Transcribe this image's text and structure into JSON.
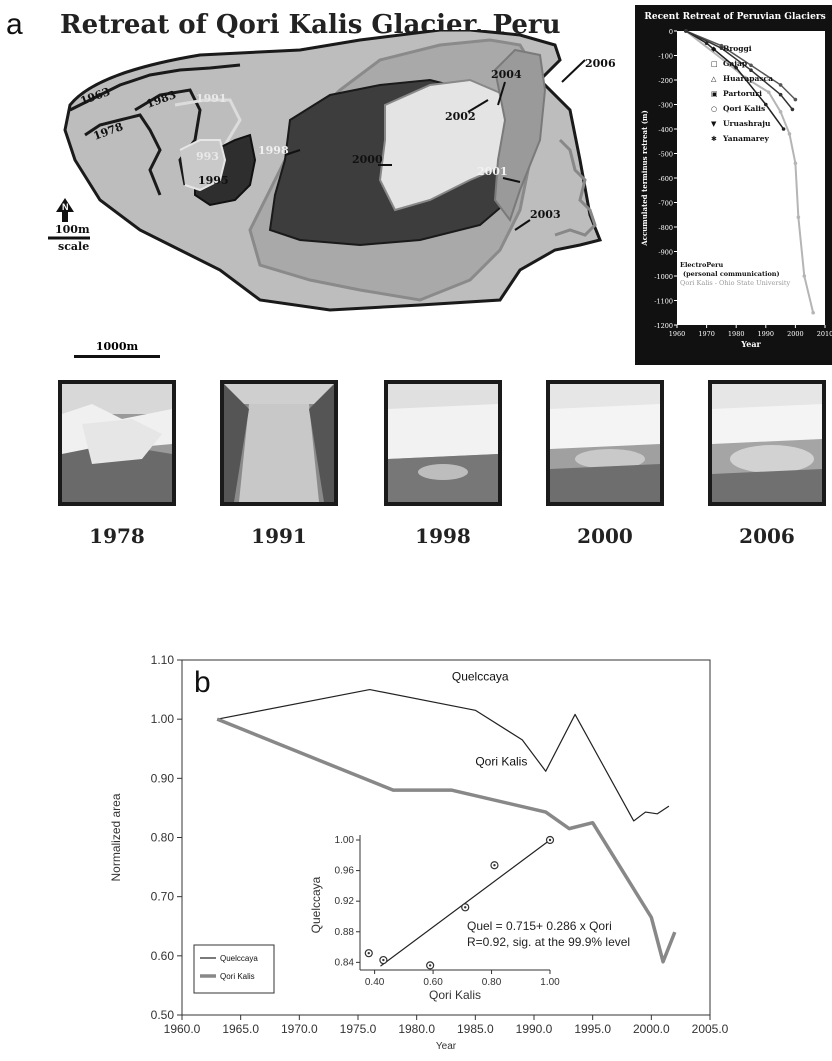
{
  "panel_a": {
    "letter": "a",
    "title": "Retreat of Qori Kalis Glacier, Peru",
    "map_labels": [
      "1963",
      "1978",
      "1983",
      "1991",
      "993",
      "1995",
      "1998",
      "2000",
      "2002",
      "2004",
      "2006",
      "2001",
      "2003"
    ],
    "north_label": "N",
    "scale_100_label": "100m",
    "scale_word": "scale",
    "scale_1000_label": "1000m",
    "photos": [
      {
        "year": "1978"
      },
      {
        "year": "1991"
      },
      {
        "year": "1998"
      },
      {
        "year": "2000"
      },
      {
        "year": "2006"
      }
    ]
  },
  "chart_data": [
    {
      "type": "line",
      "title": "Recent Retreat of Peruvian Glaciers",
      "xlabel": "Year",
      "ylabel": "Accumulated terminus retreat (m)",
      "xlim": [
        1960,
        2010
      ],
      "ylim": [
        -1200,
        0
      ],
      "x_ticks": [
        1960,
        1970,
        1980,
        1990,
        2000,
        2010
      ],
      "y_ticks": [
        0,
        -100,
        -200,
        -300,
        -400,
        -500,
        -600,
        -700,
        -800,
        -900,
        -1000,
        -1100,
        -1200
      ],
      "legend": [
        "Broggi",
        "Gajap",
        "Huarapasca",
        "Partoruri",
        "Qori Kalis",
        "Uruashraju",
        "Yanamarey"
      ],
      "legend_position": "top-center",
      "source_lines": [
        "ElectroPeru",
        "(personal communication)",
        "Qori Kalis - Ohio State University"
      ],
      "series": [
        {
          "name": "Qori Kalis",
          "color": "#b5b5b5",
          "x": [
            1963,
            1978,
            1983,
            1991,
            1995,
            1998,
            2000,
            2001,
            2003,
            2006
          ],
          "y": [
            0,
            -140,
            -190,
            -250,
            -330,
            -420,
            -540,
            -760,
            -1000,
            -1150
          ]
        },
        {
          "name": "Broggi",
          "color": "#ffffff",
          "x": [
            1963,
            1970,
            1980,
            1990,
            1996
          ],
          "y": [
            0,
            -50,
            -150,
            -300,
            -400
          ]
        },
        {
          "name": "Yanamarey",
          "color": "#dddddd",
          "x": [
            1963,
            1975,
            1985,
            1995,
            2000
          ],
          "y": [
            0,
            -60,
            -140,
            -220,
            -280
          ]
        },
        {
          "name": "Uruashraju",
          "color": "#eeeeee",
          "x": [
            1963,
            1975,
            1985,
            1995,
            1999
          ],
          "y": [
            0,
            -70,
            -160,
            -260,
            -320
          ]
        }
      ]
    },
    {
      "type": "line",
      "panel_letter": "b",
      "xlabel": "Year",
      "ylabel": "Normalized area",
      "xlim": [
        1960,
        2005
      ],
      "ylim": [
        0.5,
        1.1
      ],
      "x_ticks": [
        "1960.0",
        "1965.0",
        "1970.0",
        "1975.0",
        "1980.0",
        "1985.0",
        "1990.0",
        "1995.0",
        "2000.0",
        "2005.0"
      ],
      "y_ticks": [
        "0.50",
        "0.60",
        "0.70",
        "0.80",
        "0.90",
        "1.00",
        "1.10"
      ],
      "legend": [
        "Quelccaya",
        "Qori Kalis"
      ],
      "legend_position": "bottom-left",
      "series": [
        {
          "name": "Quelccaya",
          "x": [
            1963,
            1976,
            1985,
            1989,
            1991,
            1993.5,
            1998.5,
            1999.5,
            2000.5,
            2001.5
          ],
          "y": [
            1.0,
            1.05,
            1.015,
            0.965,
            0.912,
            1.008,
            0.828,
            0.843,
            0.84,
            0.853
          ]
        },
        {
          "name": "Qori Kalis",
          "x": [
            1963,
            1978,
            1983,
            1991,
            1993,
            1995,
            2000,
            2001,
            2002
          ],
          "y": [
            1.0,
            0.88,
            0.88,
            0.843,
            0.815,
            0.825,
            0.665,
            0.59,
            0.64
          ]
        }
      ],
      "inset": {
        "type": "scatter",
        "xlabel": "Qori Kalis",
        "ylabel": "Quelccaya",
        "xlim": [
          0.35,
          1.0
        ],
        "ylim": [
          0.83,
          1.0
        ],
        "x_ticks": [
          "0.40",
          "0.60",
          "0.80",
          "1.00"
        ],
        "y_ticks": [
          "0.84",
          "0.88",
          "0.92",
          "0.96",
          "1.00"
        ],
        "points": [
          {
            "x": 0.38,
            "y": 0.852
          },
          {
            "x": 0.43,
            "y": 0.843
          },
          {
            "x": 0.59,
            "y": 0.836
          },
          {
            "x": 0.71,
            "y": 0.912
          },
          {
            "x": 0.81,
            "y": 0.967
          },
          {
            "x": 1.0,
            "y": 1.0
          }
        ],
        "fit": {
          "x": [
            0.42,
            1.0
          ],
          "y": [
            0.835,
            1.0
          ]
        },
        "equation": "Quel = 0.715+ 0.286 x Qori",
        "stats": "R=0.92, sig. at the 99.9%  level"
      }
    }
  ]
}
